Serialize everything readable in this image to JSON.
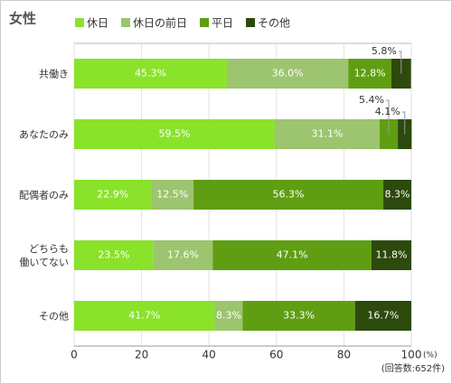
{
  "chart_data": {
    "type": "stacked-barh",
    "title": "女性",
    "categories": [
      "共働き",
      "あなたのみ",
      "配偶者のみ",
      "どちらも\n働いてない",
      "その他"
    ],
    "series": [
      {
        "name": "休日",
        "color": "#8ae22a",
        "values": [
          45.3,
          59.5,
          22.9,
          23.5,
          41.7
        ],
        "value_labels": [
          "45.3%",
          "59.5%",
          "22.9%",
          "23.5%",
          "41.7%"
        ]
      },
      {
        "name": "休日の前日",
        "color": "#9dc46e",
        "values": [
          36.0,
          31.1,
          12.5,
          17.6,
          8.3
        ],
        "value_labels": [
          "36.0%",
          "31.1%",
          "12.5%",
          "17.6%",
          "8.3%"
        ]
      },
      {
        "name": "平日",
        "color": "#5f9e12",
        "values": [
          12.8,
          5.4,
          56.3,
          47.1,
          33.3
        ],
        "value_labels": [
          "12.8%",
          "5.4%",
          "56.3%",
          "47.1%",
          "33.3%"
        ]
      },
      {
        "name": "その他",
        "color": "#2c4a0c",
        "values": [
          5.8,
          4.1,
          8.3,
          11.8,
          16.7
        ],
        "value_labels": [
          "5.8%",
          "4.1%",
          "8.3%",
          "11.8%",
          "16.7%"
        ]
      }
    ],
    "xlim": [
      0,
      100
    ],
    "xticks": [
      0,
      20,
      40,
      60,
      80,
      100
    ],
    "grid": true,
    "x_unit": "(%)",
    "note": "(回答数:652件)"
  }
}
